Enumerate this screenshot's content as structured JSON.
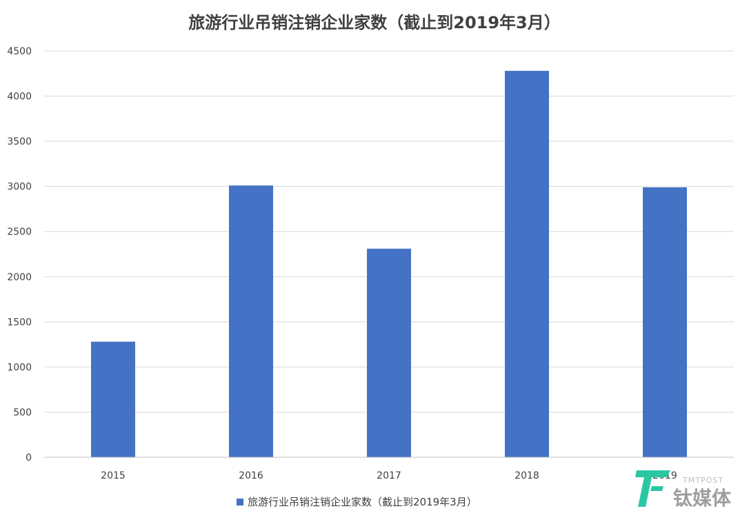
{
  "chart_data": {
    "type": "bar",
    "title": "旅游行业吊销注销企业家数（截止到2019年3月）",
    "categories": [
      "2015",
      "2016",
      "2017",
      "2018",
      "2019"
    ],
    "series": [
      {
        "name": "旅游行业吊销注销企业家数（截止到2019年3月）",
        "values": [
          1280,
          3010,
          2310,
          4280,
          2990
        ],
        "color": "#4472c4"
      }
    ],
    "ylim": [
      0,
      4500
    ],
    "yticks": [
      0,
      500,
      1000,
      1500,
      2000,
      2500,
      3000,
      3500,
      4000,
      4500
    ],
    "xlabel": "",
    "ylabel": "",
    "grid": true,
    "legend_position": "bottom"
  },
  "watermark": {
    "logo_text_en": "TMTPOST",
    "logo_text_cn": "钛媒体",
    "logo_color": "#2bc7a3",
    "icon": "tmtpost-logo-icon"
  }
}
